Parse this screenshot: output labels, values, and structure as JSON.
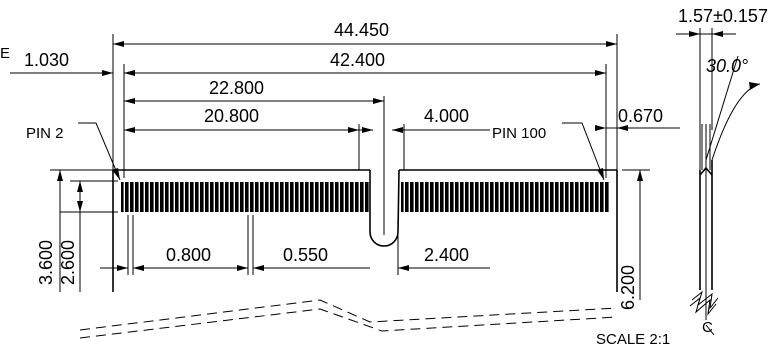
{
  "dimensions": {
    "overall_length": "44.450",
    "partial_left_width": "1.030",
    "contact_span": "42.400",
    "pin_to_key": "22.800",
    "left_contact_span": "20.800",
    "key_width": "4.000",
    "right_margin": "0.670",
    "total_height": "3.600",
    "contact_height": "2.600",
    "pitch": "0.800",
    "pad_width": "0.550",
    "key_depth": "2.400",
    "board_height": "6.200",
    "thickness": "1.57±0.157",
    "chamfer_angle": "30.0°"
  },
  "labels": {
    "pin_left": "PIN 2",
    "pin_right": "PIN 100",
    "scale": "SCALE 2:1",
    "centerline": "C",
    "cut_letter": "E"
  },
  "colors": {
    "ink": "#000000",
    "paper": "#ffffff"
  }
}
